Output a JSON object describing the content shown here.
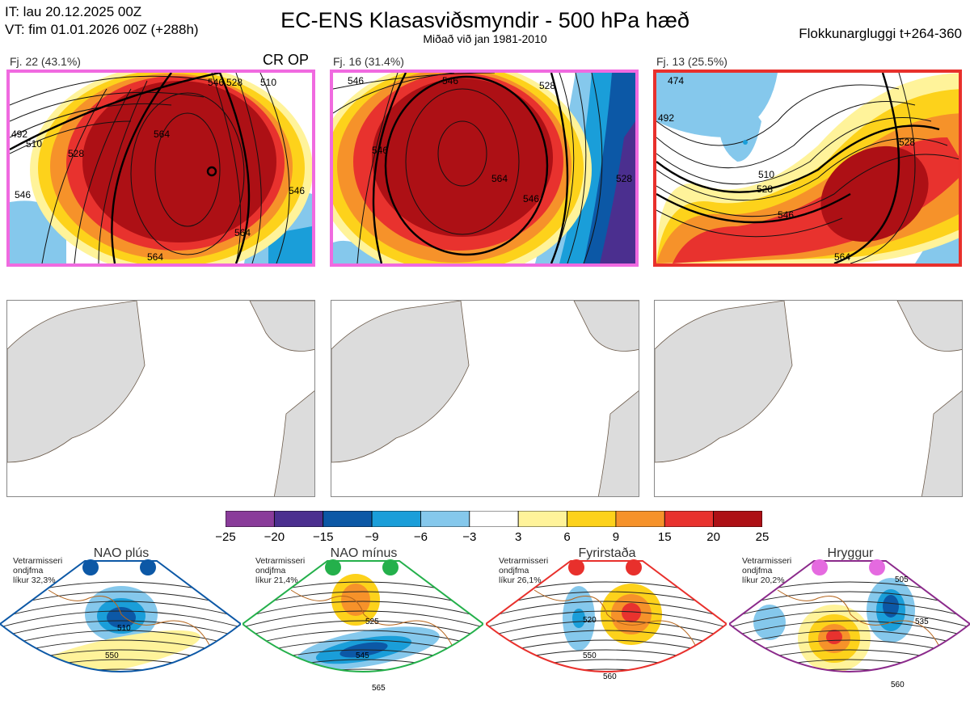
{
  "header": {
    "it_line": "IT: lau 20.12.2025 00Z",
    "vt_line": "VT: fim 01.01.2026 00Z  (+288h)",
    "title": "EC-ENS Klasasviðsmyndir - 500 hPa hæð",
    "subtitle": "Miðað við jan 1981-2010",
    "window": "Flokkunargluggi t+264-360"
  },
  "clusters": [
    {
      "label": "Fj. 22 (43.1%)",
      "border": "#f06ae0",
      "tag": "CR OP",
      "contours": [
        "492",
        "510",
        "528",
        "546",
        "564",
        "564",
        "546",
        "528",
        "510",
        "546",
        "564"
      ]
    },
    {
      "label": "Fj. 16 (31.4%)",
      "border": "#f06ae0",
      "tag": "",
      "contours": [
        "546",
        "546",
        "546",
        "528",
        "564",
        "546",
        "528"
      ]
    },
    {
      "label": "Fj. 13 (25.5%)",
      "border": "#e8302c",
      "tag": "",
      "contours": [
        "474",
        "492",
        "528",
        "510",
        "528",
        "546",
        "564"
      ]
    }
  ],
  "colorbar": {
    "ticks": [
      "−25",
      "−20",
      "−15",
      "−9",
      "−6",
      "−3",
      "3",
      "6",
      "9",
      "15",
      "20",
      "25"
    ],
    "colors": [
      "#8a3c9a",
      "#4b2f8f",
      "#0c58a6",
      "#1a9ed9",
      "#85c8ec",
      "#ffffff",
      "#fff39a",
      "#fdd21b",
      "#f6922a",
      "#e8322e",
      "#ad1015"
    ]
  },
  "regimes": [
    {
      "name": "NAO plús",
      "note": [
        "Vetrarmisseri",
        "ondjfma",
        "líkur 32,3%"
      ],
      "dot": "#0c58a6",
      "border": "#0c58a6",
      "labels": [
        "510",
        "550"
      ]
    },
    {
      "name": "NAO mínus",
      "note": [
        "Vetrarmisseri",
        "ondjfma",
        "líkur 21,4%"
      ],
      "dot": "#24b04b",
      "border": "#24b04b",
      "labels": [
        "525",
        "545",
        "565"
      ]
    },
    {
      "name": "Fyrirstaða",
      "note": [
        "Vetrarmisseri",
        "ondjfma",
        "líkur 26,1%"
      ],
      "dot": "#e8302c",
      "border": "#e8302c",
      "labels": [
        "520",
        "550",
        "560"
      ]
    },
    {
      "name": "Hryggur",
      "note": [
        "Vetrarmisseri",
        "ondjfma",
        "líkur 20,2%"
      ],
      "dot": "#e56ae0",
      "border": "#8b2a8b",
      "labels": [
        "505",
        "535",
        "560"
      ]
    }
  ]
}
